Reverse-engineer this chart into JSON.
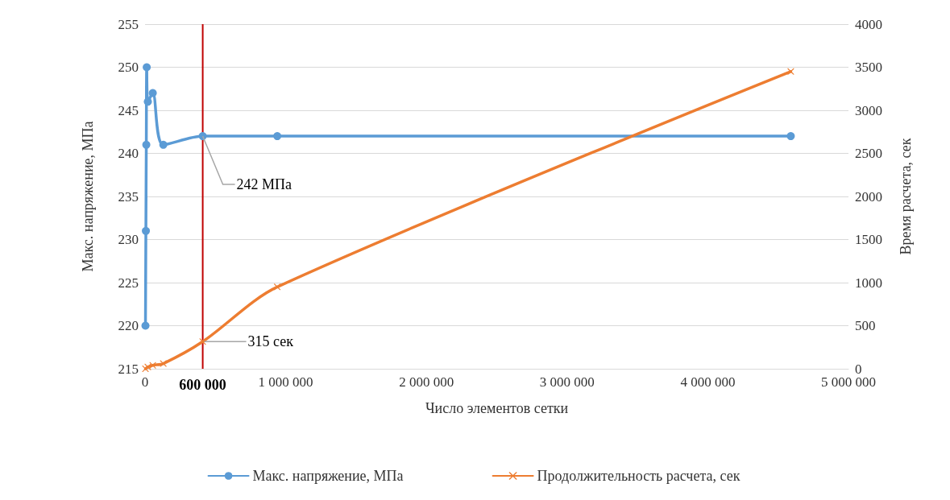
{
  "chart_data": {
    "type": "line",
    "xlabel": "Число элементов сетки",
    "ylabel": "Макс. напряжение, МПа",
    "y2label": "Время расчета, сек",
    "xlim": [
      0,
      5000000
    ],
    "xticks": [
      0,
      {
        "value": 1000000,
        "label": "1 000 000"
      },
      {
        "value": 2000000,
        "label": "2 000 000"
      },
      {
        "value": 3000000,
        "label": "3 000 000"
      },
      {
        "value": 4000000,
        "label": "4 000 000"
      },
      {
        "value": 5000000,
        "label": "5 000 000"
      }
    ],
    "ylim": [
      215,
      255
    ],
    "yticks": [
      215,
      220,
      225,
      230,
      235,
      240,
      245,
      250,
      255
    ],
    "y2lim": [
      0,
      4000
    ],
    "y2ticks": [
      0,
      500,
      1000,
      1500,
      2000,
      2500,
      3000,
      3500,
      4000
    ],
    "grid": "y",
    "legend": "bottom",
    "line_style": "solid",
    "series": [
      {
        "name": "Макс. напряжение, МПа",
        "color": "#5b9bd5",
        "marker": "circle",
        "x": [
          3000,
          6000,
          9000,
          12000,
          20000,
          55000,
          130000,
          410000,
          940000,
          4590000
        ],
        "values": [
          220,
          231,
          241,
          250,
          246,
          247,
          241,
          242,
          242,
          242
        ]
      },
      {
        "name": "Продолжительность расчета, сек",
        "color": "#ed7d31",
        "marker": "cross",
        "axis": "y2",
        "x": [
          3000,
          20000,
          55000,
          130000,
          410000,
          940000,
          4590000
        ],
        "values": [
          0,
          20,
          40,
          60,
          315,
          950,
          3450
        ]
      }
    ],
    "ref_lines": [
      {
        "axis": "x",
        "value": 410000,
        "color": "#c00000"
      }
    ],
    "annotations": [
      {
        "text": "242 МПа",
        "x": 410000,
        "y": 242
      },
      {
        "text": "315 сек",
        "x": 410000
      },
      "600 000"
    ]
  }
}
